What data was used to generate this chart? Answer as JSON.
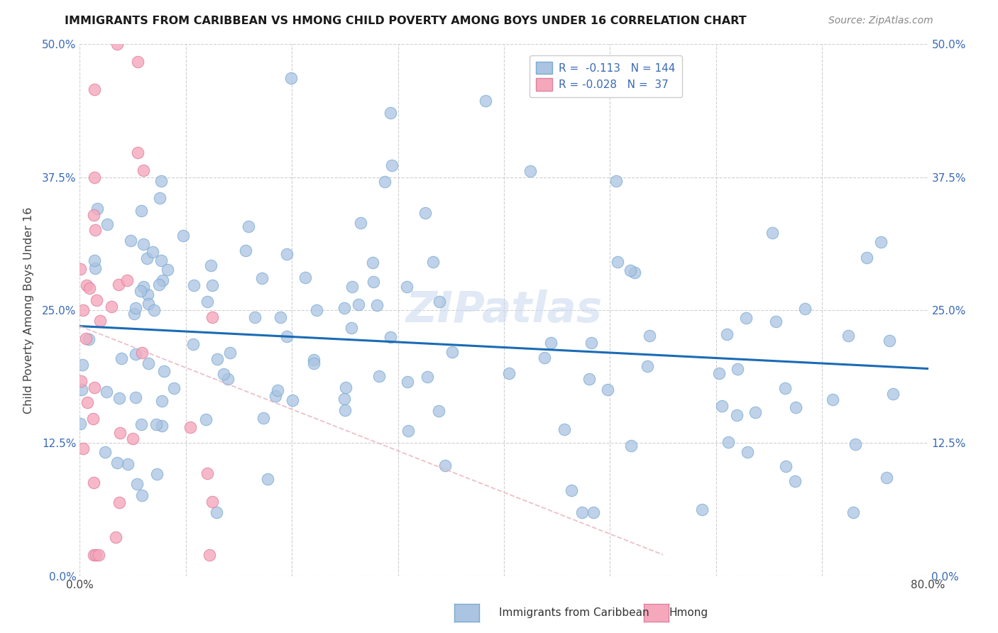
{
  "title": "IMMIGRANTS FROM CARIBBEAN VS HMONG CHILD POVERTY AMONG BOYS UNDER 16 CORRELATION CHART",
  "source": "Source: ZipAtlas.com",
  "ylabel": "Child Poverty Among Boys Under 16",
  "xlim": [
    0.0,
    0.8
  ],
  "ylim": [
    0.0,
    0.5
  ],
  "ytick_values": [
    0.0,
    0.125,
    0.25,
    0.375,
    0.5
  ],
  "ytick_labels": [
    "0.0%",
    "12.5%",
    "25.0%",
    "37.5%",
    "50.0%"
  ],
  "xtick_values": [
    0.0,
    0.1,
    0.2,
    0.3,
    0.4,
    0.5,
    0.6,
    0.7,
    0.8
  ],
  "xtick_labels": [
    "0.0%",
    "",
    "",
    "",
    "",
    "",
    "",
    "",
    "80.0%"
  ],
  "blue_color": "#aac4e2",
  "pink_color": "#f5a8bc",
  "line_blue": "#1a6bb5",
  "line_pink": "#e8b0bc",
  "watermark": "ZIPatlas",
  "legend_text1": "R =  -0.113   N = 144",
  "legend_text2": "R = -0.028   N =  37",
  "bottom_label1": "Immigrants from Caribbean",
  "bottom_label2": "Hmong"
}
